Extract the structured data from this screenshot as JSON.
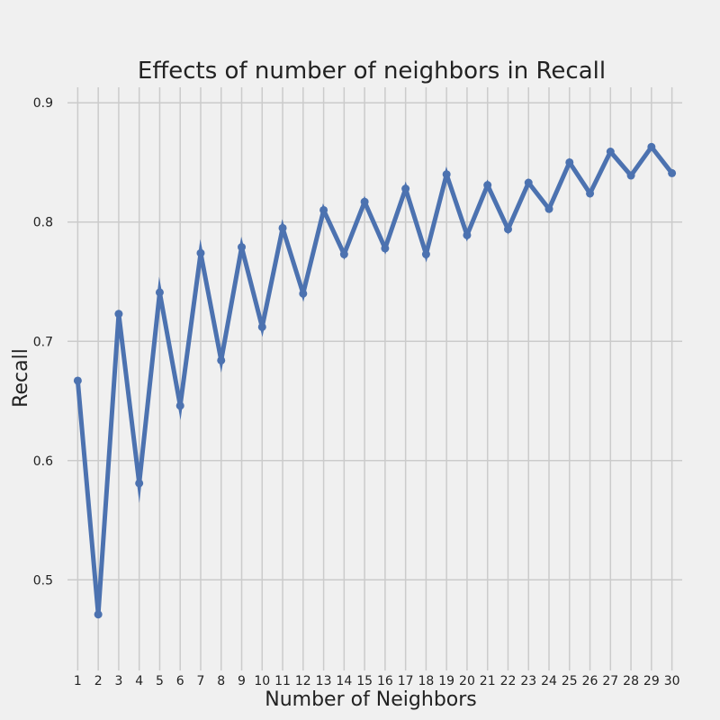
{
  "chart_data": {
    "type": "line",
    "title": "Effects of number of neighbors in Recall",
    "xlabel": "Number of Neighbors",
    "ylabel": "Recall",
    "x": [
      1,
      2,
      3,
      4,
      5,
      6,
      7,
      8,
      9,
      10,
      11,
      12,
      13,
      14,
      15,
      16,
      17,
      18,
      19,
      20,
      21,
      22,
      23,
      24,
      25,
      26,
      27,
      28,
      29,
      30
    ],
    "series": [
      {
        "values": [
          0.667,
          0.471,
          0.723,
          0.581,
          0.741,
          0.646,
          0.774,
          0.684,
          0.779,
          0.712,
          0.795,
          0.74,
          0.81,
          0.773,
          0.817,
          0.778,
          0.828,
          0.773,
          0.84,
          0.789,
          0.831,
          0.794,
          0.833,
          0.811,
          0.85,
          0.824,
          0.859,
          0.839,
          0.863,
          0.841
        ]
      }
    ],
    "xticks": [
      "1",
      "2",
      "3",
      "4",
      "5",
      "6",
      "7",
      "8",
      "9",
      "10",
      "11",
      "12",
      "13",
      "14",
      "15",
      "16",
      "17",
      "18",
      "19",
      "20",
      "21",
      "22",
      "23",
      "24",
      "25",
      "26",
      "27",
      "28",
      "29",
      "30"
    ],
    "yticks": [
      "0.5",
      "0.6",
      "0.7",
      "0.8",
      "0.9"
    ],
    "ytick_values": [
      0.5,
      0.6,
      0.7,
      0.8,
      0.9
    ],
    "ylim": [
      0.424,
      0.913
    ],
    "xlim": [
      0.5,
      30.5
    ],
    "grid": true,
    "colors": {
      "background": "#f0f0f0",
      "grid": "#cbcbcb",
      "line": "#4c72b0"
    }
  }
}
